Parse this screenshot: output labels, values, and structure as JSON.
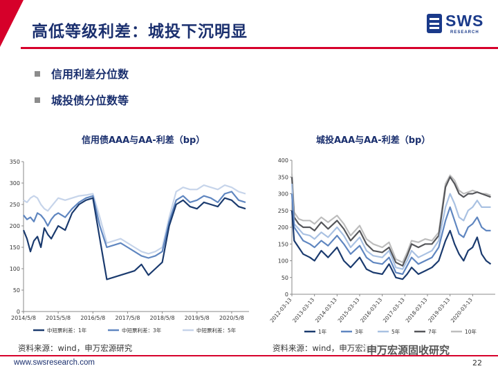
{
  "header": {
    "title": "高低等级利差：城投下沉明显",
    "logo_text": "SWS",
    "logo_sub": "RESEARCH"
  },
  "bullets": [
    "信用利差分位数",
    "城投债分位数等"
  ],
  "charts_meta": {
    "left_source": "资料来源：wind，申万宏源研究",
    "right_source": "资料来源：wind，申万宏源研究"
  },
  "footer": {
    "url": "www.swsresearch.com",
    "page_number": "22",
    "watermark": "申万宏源固收研究"
  },
  "colors": {
    "brand_red": "#d6002a",
    "navy": "#1a2f6e"
  },
  "chart_data": [
    {
      "type": "line",
      "title": "信用债AAA与AA-利差（bp）",
      "x_ticks": [
        "2014/5/8",
        "2015/5/8",
        "2016/5/8",
        "2017/5/8",
        "2018/5/8",
        "2019/5/8",
        "2020/5/8"
      ],
      "ylim": [
        0,
        350
      ],
      "y_ticks": [
        0,
        50,
        100,
        150,
        200,
        250,
        300,
        350
      ],
      "legend_position": "bottom",
      "series": [
        {
          "name": "中短票利差：1年",
          "color": "#1a3a6e",
          "x": [
            0,
            0.1,
            0.2,
            0.3,
            0.4,
            0.5,
            0.6,
            0.7,
            0.8,
            0.9,
            1.0,
            1.2,
            1.4,
            1.6,
            1.8,
            2.0,
            2.2,
            2.4,
            2.6,
            2.8,
            3.0,
            3.2,
            3.4,
            3.6,
            3.8,
            4.0,
            4.2,
            4.4,
            4.6,
            4.8,
            5.0,
            5.2,
            5.4,
            5.6,
            5.8,
            6.0,
            6.2,
            6.4
          ],
          "values": [
            190,
            170,
            140,
            165,
            175,
            150,
            195,
            180,
            170,
            185,
            200,
            190,
            230,
            250,
            260,
            265,
            170,
            75,
            80,
            85,
            90,
            95,
            110,
            85,
            100,
            115,
            200,
            250,
            260,
            245,
            240,
            255,
            250,
            245,
            265,
            260,
            245,
            240
          ]
        },
        {
          "name": "中短票利差：3年",
          "color": "#5f86c0",
          "x": [
            0,
            0.1,
            0.2,
            0.3,
            0.4,
            0.5,
            0.6,
            0.7,
            0.8,
            0.9,
            1.0,
            1.2,
            1.4,
            1.6,
            1.8,
            2.0,
            2.2,
            2.4,
            2.6,
            2.8,
            3.0,
            3.2,
            3.4,
            3.6,
            3.8,
            4.0,
            4.2,
            4.4,
            4.6,
            4.8,
            5.0,
            5.2,
            5.4,
            5.6,
            5.8,
            6.0,
            6.2,
            6.4
          ],
          "values": [
            225,
            215,
            220,
            210,
            230,
            225,
            215,
            200,
            215,
            225,
            230,
            220,
            240,
            255,
            265,
            270,
            200,
            150,
            155,
            160,
            150,
            140,
            130,
            125,
            130,
            140,
            210,
            260,
            270,
            255,
            260,
            270,
            265,
            255,
            275,
            280,
            260,
            255
          ]
        },
        {
          "name": "中短票利差：5年",
          "color": "#c6d4ea",
          "x": [
            0,
            0.1,
            0.2,
            0.3,
            0.4,
            0.5,
            0.6,
            0.7,
            0.8,
            0.9,
            1.0,
            1.2,
            1.4,
            1.6,
            1.8,
            2.0,
            2.2,
            2.4,
            2.6,
            2.8,
            3.0,
            3.2,
            3.4,
            3.6,
            3.8,
            4.0,
            4.2,
            4.4,
            4.6,
            4.8,
            5.0,
            5.2,
            5.4,
            5.6,
            5.8,
            6.0,
            6.2,
            6.4
          ],
          "values": [
            260,
            255,
            265,
            270,
            265,
            250,
            240,
            235,
            245,
            255,
            265,
            260,
            265,
            270,
            272,
            275,
            220,
            160,
            165,
            170,
            160,
            150,
            140,
            135,
            140,
            150,
            220,
            280,
            290,
            285,
            285,
            295,
            290,
            285,
            295,
            290,
            280,
            275
          ]
        }
      ]
    },
    {
      "type": "line",
      "title": "城投AAA与AA-利差（bp）",
      "x_ticks": [
        "2012-03-13",
        "2013-03-13",
        "2014-03-13",
        "2015-03-13",
        "2016-03-13",
        "2017-03-13",
        "2018-03-13",
        "2019-03-13",
        "2020-03-13"
      ],
      "ylim": [
        0,
        400
      ],
      "y_ticks": [
        0,
        50,
        100,
        150,
        200,
        250,
        300,
        350,
        400
      ],
      "legend_position": "bottom",
      "series": [
        {
          "name": "1年",
          "color": "#1a3a6e",
          "x": [
            0,
            0.1,
            0.3,
            0.5,
            0.8,
            1.0,
            1.3,
            1.6,
            2.0,
            2.3,
            2.6,
            3.0,
            3.3,
            3.6,
            4.0,
            4.3,
            4.6,
            4.9,
            5.1,
            5.3,
            5.6,
            5.9,
            6.2,
            6.5,
            6.8,
            7.0,
            7.2,
            7.4,
            7.6,
            7.8,
            8.0,
            8.2,
            8.4,
            8.6,
            8.8
          ],
          "values": [
            250,
            160,
            140,
            120,
            110,
            100,
            130,
            110,
            140,
            100,
            80,
            110,
            75,
            65,
            60,
            90,
            50,
            45,
            60,
            80,
            60,
            70,
            80,
            100,
            160,
            190,
            150,
            120,
            100,
            130,
            140,
            170,
            120,
            100,
            90
          ]
        },
        {
          "name": "3年",
          "color": "#5f86c0",
          "x": [
            0,
            0.1,
            0.3,
            0.5,
            0.8,
            1.0,
            1.3,
            1.6,
            2.0,
            2.3,
            2.6,
            3.0,
            3.3,
            3.6,
            4.0,
            4.3,
            4.6,
            4.9,
            5.1,
            5.3,
            5.6,
            5.9,
            6.2,
            6.5,
            6.8,
            7.0,
            7.2,
            7.4,
            7.6,
            7.8,
            8.0,
            8.2,
            8.4,
            8.6,
            8.8
          ],
          "values": [
            300,
            200,
            180,
            160,
            150,
            140,
            160,
            145,
            175,
            150,
            120,
            145,
            110,
            95,
            90,
            110,
            65,
            60,
            85,
            110,
            90,
            100,
            110,
            140,
            220,
            260,
            220,
            180,
            170,
            200,
            210,
            230,
            200,
            190,
            190
          ]
        },
        {
          "name": "5年",
          "color": "#a9c1e2",
          "x": [
            0,
            0.1,
            0.3,
            0.5,
            0.8,
            1.0,
            1.3,
            1.6,
            2.0,
            2.3,
            2.6,
            3.0,
            3.3,
            3.6,
            4.0,
            4.3,
            4.6,
            4.9,
            5.1,
            5.3,
            5.6,
            5.9,
            6.2,
            6.5,
            6.8,
            7.0,
            7.2,
            7.4,
            7.6,
            7.8,
            8.0,
            8.2,
            8.4,
            8.6,
            8.8
          ],
          "values": [
            330,
            210,
            195,
            180,
            175,
            165,
            185,
            170,
            200,
            175,
            140,
            170,
            130,
            115,
            110,
            130,
            80,
            75,
            100,
            130,
            110,
            120,
            130,
            160,
            260,
            300,
            270,
            230,
            220,
            250,
            260,
            280,
            260,
            260,
            260
          ]
        },
        {
          "name": "7年",
          "color": "#55565a",
          "x": [
            0,
            0.1,
            0.3,
            0.5,
            0.8,
            1.0,
            1.3,
            1.6,
            2.0,
            2.3,
            2.6,
            3.0,
            3.3,
            3.6,
            4.0,
            4.3,
            4.6,
            4.9,
            5.1,
            5.3,
            5.6,
            5.9,
            6.2,
            6.5,
            6.8,
            7.0,
            7.2,
            7.4,
            7.6,
            7.8,
            8.0,
            8.2,
            8.4,
            8.6,
            8.8
          ],
          "values": [
            350,
            230,
            210,
            200,
            200,
            190,
            215,
            195,
            220,
            195,
            160,
            190,
            150,
            130,
            125,
            140,
            95,
            85,
            115,
            150,
            140,
            150,
            150,
            175,
            320,
            350,
            330,
            300,
            290,
            300,
            300,
            305,
            300,
            295,
            290
          ]
        },
        {
          "name": "10年",
          "color": "#bdbdbd",
          "x": [
            0,
            0.1,
            0.3,
            0.5,
            0.8,
            1.0,
            1.3,
            1.6,
            2.0,
            2.3,
            2.6,
            3.0,
            3.3,
            3.6,
            4.0,
            4.3,
            4.6,
            4.9,
            5.1,
            5.3,
            5.6,
            5.9,
            6.2,
            6.5,
            6.8,
            7.0,
            7.2,
            7.4,
            7.6,
            7.8,
            8.0,
            8.2,
            8.4,
            8.6,
            8.8
          ],
          "values": [
            360,
            245,
            225,
            220,
            220,
            210,
            230,
            215,
            235,
            210,
            175,
            205,
            165,
            150,
            140,
            155,
            105,
            95,
            125,
            160,
            155,
            165,
            160,
            185,
            330,
            355,
            340,
            310,
            300,
            305,
            310,
            305,
            300,
            300,
            295
          ]
        }
      ]
    }
  ]
}
